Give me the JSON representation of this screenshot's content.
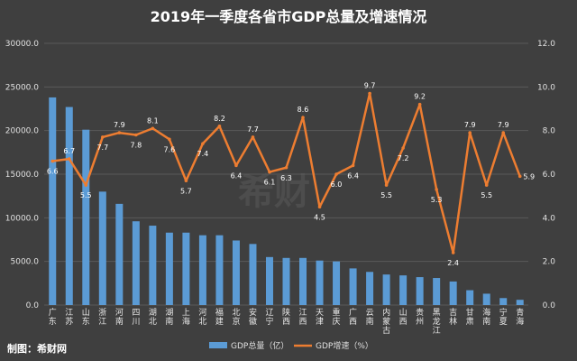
{
  "chart_data": {
    "type": "bar+line",
    "title": "2019年一季度各省市GDP总量及增速情况",
    "categories": [
      "广东",
      "江苏",
      "山东",
      "浙江",
      "河南",
      "四川",
      "湖北",
      "湖南",
      "上海",
      "河北",
      "福建",
      "北京",
      "安徽",
      "辽宁",
      "陕西",
      "江西",
      "天津",
      "重庆",
      "广西",
      "云南",
      "内蒙古",
      "山西",
      "贵州",
      "黑龙江",
      "吉林",
      "甘肃",
      "海南",
      "宁夏",
      "青海"
    ],
    "series": [
      {
        "name": "GDP总量（亿）",
        "type": "bar",
        "axis": "left",
        "values": [
          23800,
          22700,
          20100,
          13000,
          11600,
          9600,
          9100,
          8300,
          8300,
          8000,
          8000,
          7400,
          7000,
          5500,
          5400,
          5400,
          5100,
          5000,
          4200,
          3800,
          3500,
          3400,
          3200,
          3100,
          2700,
          1700,
          1300,
          800,
          600
        ]
      },
      {
        "name": "GDP增速（%）",
        "type": "line",
        "axis": "right",
        "values": [
          6.6,
          6.7,
          5.5,
          7.7,
          7.9,
          7.8,
          8.1,
          7.6,
          5.7,
          7.4,
          8.2,
          6.4,
          7.7,
          6.1,
          6.3,
          8.6,
          4.5,
          6.0,
          6.4,
          9.7,
          5.5,
          7.2,
          9.2,
          5.3,
          2.4,
          7.9,
          5.5,
          7.9,
          5.9
        ],
        "labels": [
          "6.6",
          "6.7",
          "5.5",
          "7.7",
          "7.9",
          "7.8",
          "8.1",
          "7.6",
          "5.7",
          "7.4",
          "8.2",
          "6.4",
          "7.7",
          "6.1",
          "6.3",
          "8.6",
          "4.5",
          "6.0",
          "6.4",
          "9.7",
          "5.5",
          "7.2",
          "9.2",
          "5.3",
          "2.4",
          "7.9",
          "5.5",
          "7.9",
          "5.9"
        ]
      }
    ],
    "yleft": {
      "min": 0,
      "max": 30000,
      "ticks": [
        "0.0",
        "5000.0",
        "10000.0",
        "15000.0",
        "20000.0",
        "25000.0",
        "30000.0"
      ]
    },
    "yright": {
      "min": 0,
      "max": 12,
      "ticks": [
        "0.0",
        "2.0",
        "4.0",
        "6.0",
        "8.0",
        "10.0",
        "12.0"
      ]
    },
    "legend_position": "bottom",
    "grid": true
  },
  "credit": "制图：希财网",
  "watermark": "希财",
  "colors": {
    "bar": "#5b9bd5",
    "line": "#ed7d31",
    "background": "#3f3f3f",
    "grid": "#5a5a5a"
  }
}
